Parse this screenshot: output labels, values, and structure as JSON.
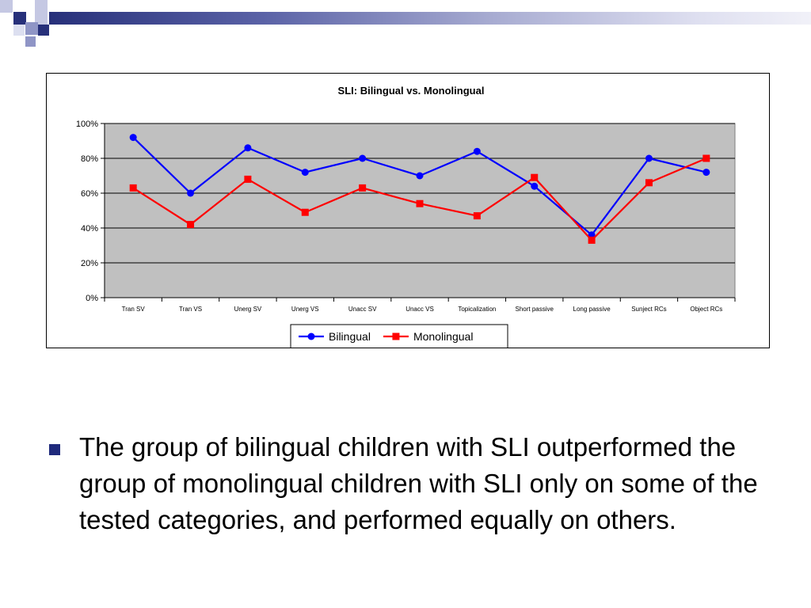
{
  "colors": {
    "header_dark": "#27307a",
    "header_light": "#dedff0",
    "bullet": "#1f2a7c",
    "plot_background": "#c0c0c0",
    "bilingual": "#0000ff",
    "monolingual": "#ff0000"
  },
  "chart_data": {
    "type": "line",
    "title": "SLI: Bilingual vs. Monolingual",
    "xlabel": "",
    "ylabel": "",
    "categories": [
      "Tran SV",
      "Tran VS",
      "Unerg SV",
      "Unerg VS",
      "Unacc SV",
      "Unacc VS",
      "Topicalization",
      "Short passive",
      "Long passive",
      "Sunject RCs",
      "Object RCs"
    ],
    "series": [
      {
        "name": "Bilingual",
        "color": "#0000ff",
        "marker": "circle",
        "values": [
          92,
          60,
          86,
          72,
          80,
          70,
          84,
          64,
          36,
          80,
          72
        ]
      },
      {
        "name": "Monolingual",
        "color": "#ff0000",
        "marker": "square",
        "values": [
          63,
          42,
          68,
          49,
          63,
          54,
          47,
          69,
          33,
          66,
          80
        ]
      }
    ],
    "ylim": [
      0,
      100
    ],
    "yticks": [
      "0%",
      "20%",
      "40%",
      "60%",
      "80%",
      "100%"
    ],
    "grid": true,
    "legend": "bottom-center"
  },
  "bullet": {
    "text": "The group of bilingual children with SLI outperformed the group of monolingual children with SLI only on some of the tested categories, and performed equally on others."
  }
}
